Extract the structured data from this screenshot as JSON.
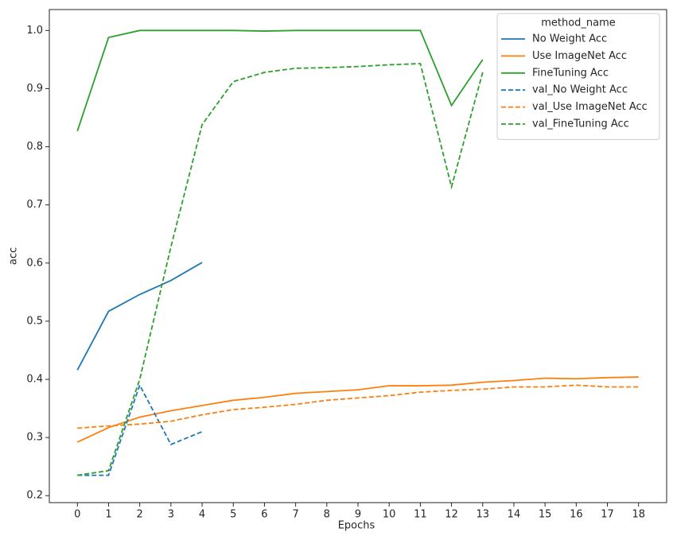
{
  "chart_data": {
    "type": "line",
    "x_label": "Epochs",
    "y_label": "acc",
    "x": [
      0,
      1,
      2,
      3,
      4,
      5,
      6,
      7,
      8,
      9,
      10,
      11,
      12,
      13,
      14,
      15,
      16,
      17,
      18
    ],
    "xlim": [
      -0.9,
      18.9
    ],
    "xticks": [
      0,
      1,
      2,
      3,
      4,
      5,
      6,
      7,
      8,
      9,
      10,
      11,
      12,
      13,
      14,
      15,
      16,
      17,
      18
    ],
    "ylim": [
      0.188,
      1.036
    ],
    "yticks": [
      0.2,
      0.3,
      0.4,
      0.5,
      0.6,
      0.7,
      0.8,
      0.9,
      {
        "value": 1,
        "label": "1.0"
      }
    ],
    "grid": false,
    "legend_title": "method_name",
    "legend_position": "upper right",
    "series": [
      {
        "name": "No Weight Acc",
        "color": "#1f77b4",
        "style": "solid",
        "values": [
          0.416,
          0.517,
          0.546,
          0.57,
          0.601,
          null,
          null,
          null,
          null,
          null,
          null,
          null,
          null,
          null,
          null,
          null,
          null,
          null,
          null
        ]
      },
      {
        "name": "Use ImageNet Acc",
        "color": "#ff7f0e",
        "style": "solid",
        "values": [
          0.292,
          0.317,
          0.335,
          0.346,
          0.355,
          0.364,
          0.369,
          0.376,
          0.379,
          0.382,
          0.389,
          0.389,
          0.39,
          0.395,
          0.398,
          0.402,
          0.401,
          0.403,
          0.404
        ]
      },
      {
        "name": "FineTuning Acc",
        "color": "#2ca02c",
        "style": "solid",
        "values": [
          0.827,
          0.988,
          1.0,
          1.0,
          1.0,
          1.0,
          0.999,
          1.0,
          1.0,
          1.0,
          1.0,
          1.0,
          0.871,
          0.95,
          null,
          null,
          null,
          null,
          null
        ]
      },
      {
        "name": "val_No Weight Acc",
        "color": "#1f77b4",
        "style": "dashed",
        "values": [
          0.235,
          0.235,
          0.39,
          0.288,
          0.31,
          null,
          null,
          null,
          null,
          null,
          null,
          null,
          null,
          null,
          null,
          null,
          null,
          null,
          null
        ]
      },
      {
        "name": "val_Use ImageNet Acc",
        "color": "#ff7f0e",
        "style": "dashed",
        "values": [
          0.316,
          0.32,
          0.323,
          0.328,
          0.339,
          0.348,
          0.352,
          0.357,
          0.364,
          0.368,
          0.372,
          0.378,
          0.381,
          0.383,
          0.387,
          0.387,
          0.39,
          0.387,
          0.387
        ]
      },
      {
        "name": "val_FineTuning Acc",
        "color": "#2ca02c",
        "style": "dashed",
        "values": [
          0.235,
          0.243,
          0.4,
          0.628,
          0.838,
          0.912,
          0.928,
          0.935,
          0.936,
          0.938,
          0.941,
          0.943,
          0.731,
          0.928,
          null,
          null,
          null,
          null,
          null
        ]
      }
    ]
  }
}
